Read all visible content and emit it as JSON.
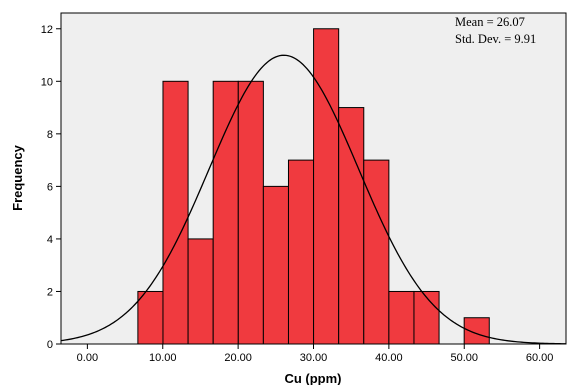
{
  "chart_data": {
    "type": "bar",
    "title": "",
    "xlabel": "Cu (ppm)",
    "ylabel": "Frequency",
    "stats": {
      "mean_label": "Mean = 26.07",
      "std_label": "Std. Dev. = 9.91",
      "mean": 26.07,
      "std_dev": 9.91
    },
    "xlim": [
      -3.5,
      63.5
    ],
    "ylim": [
      0,
      12.6
    ],
    "xticks": [
      0,
      10,
      20,
      30,
      40,
      50,
      60
    ],
    "xtick_labels": [
      "0.00",
      "10.00",
      "20.00",
      "30.00",
      "40.00",
      "50.00",
      "60.00"
    ],
    "yticks": [
      0,
      2,
      4,
      6,
      8,
      10,
      12
    ],
    "ytick_labels": [
      "0",
      "2",
      "4",
      "6",
      "8",
      "10",
      "12"
    ],
    "bin_width": 3.33,
    "bins": [
      {
        "start": 6.7,
        "end": 10.03,
        "count": 2
      },
      {
        "start": 10.03,
        "end": 13.36,
        "count": 10
      },
      {
        "start": 13.36,
        "end": 16.69,
        "count": 4
      },
      {
        "start": 16.69,
        "end": 20.02,
        "count": 10
      },
      {
        "start": 20.02,
        "end": 23.35,
        "count": 10
      },
      {
        "start": 23.35,
        "end": 26.68,
        "count": 6
      },
      {
        "start": 26.68,
        "end": 30.01,
        "count": 7
      },
      {
        "start": 30.01,
        "end": 33.34,
        "count": 12
      },
      {
        "start": 33.34,
        "end": 36.67,
        "count": 9
      },
      {
        "start": 36.67,
        "end": 40.0,
        "count": 7
      },
      {
        "start": 40.0,
        "end": 43.33,
        "count": 2
      },
      {
        "start": 43.33,
        "end": 46.66,
        "count": 2
      },
      {
        "start": 46.66,
        "end": 49.99,
        "count": 0
      },
      {
        "start": 49.99,
        "end": 53.32,
        "count": 1
      }
    ],
    "n": 82,
    "normal_curve": true,
    "colors": {
      "bar_fill": "#f03a3f",
      "bar_stroke": "#000000",
      "plot_background": "#efefef",
      "curve": "#000000"
    },
    "grid": false
  }
}
